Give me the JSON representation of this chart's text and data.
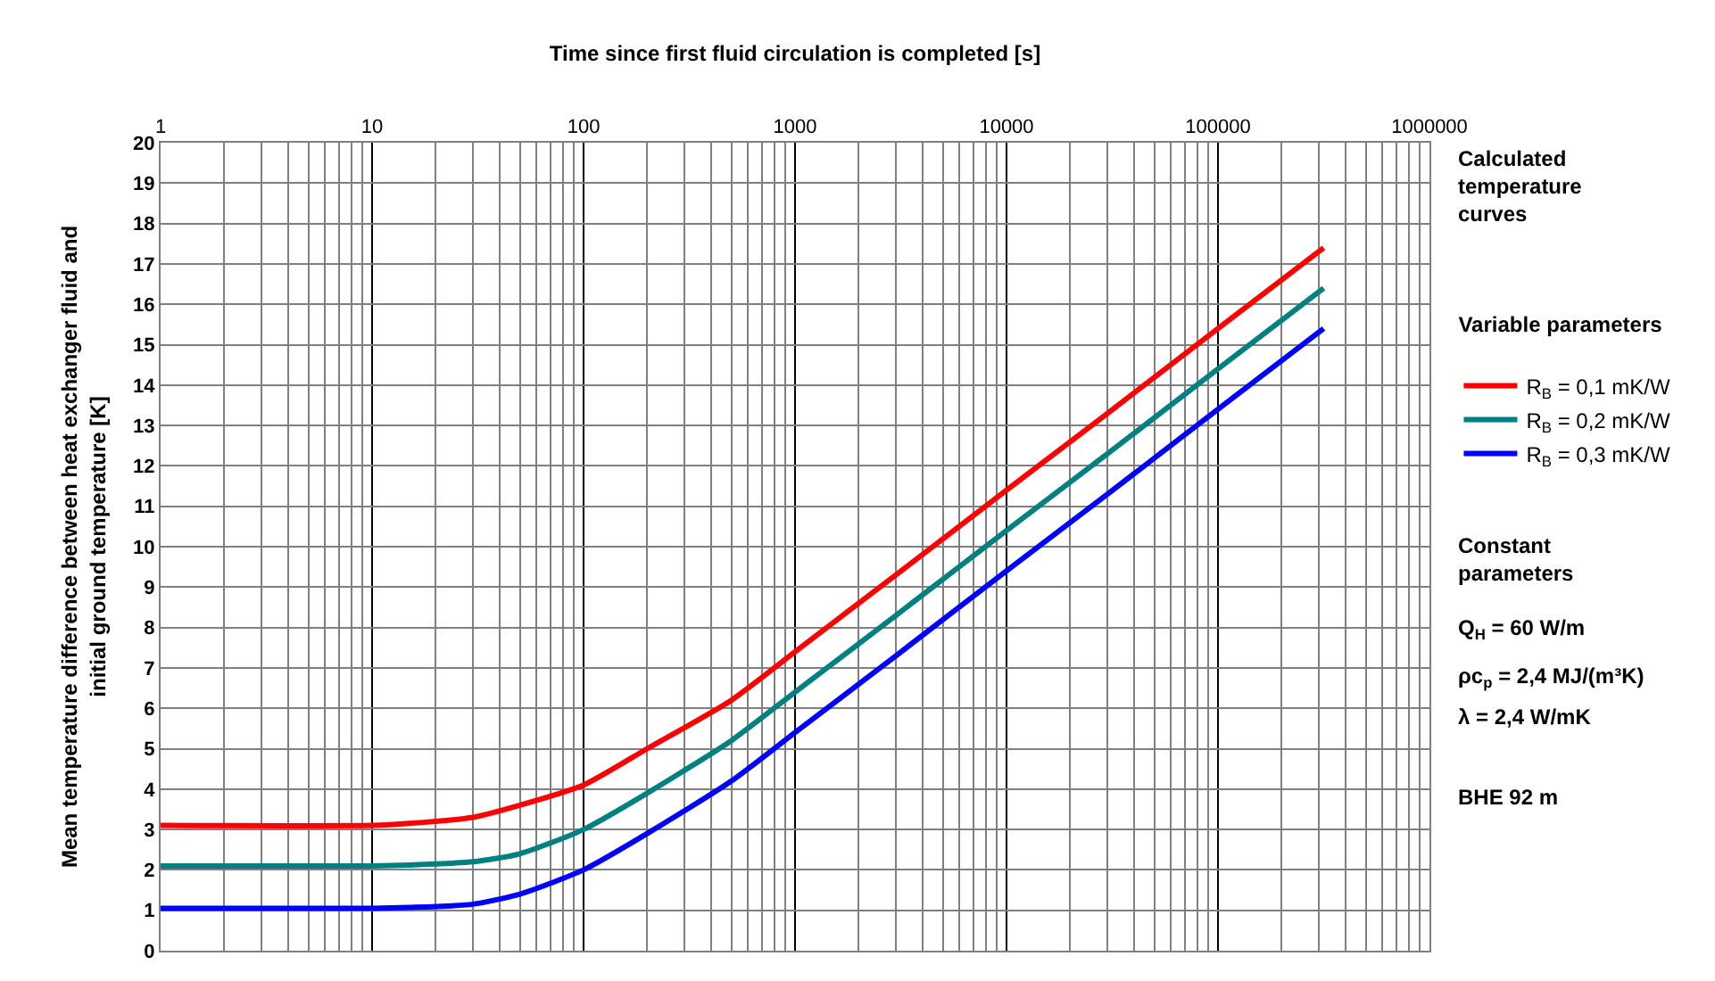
{
  "chart_data": {
    "type": "line",
    "xlabel": "Time since first fluid circulation is completed [s]",
    "ylabel": "Mean temperature difference between heat exchanger fluid and initial ground temperature [K]",
    "x": [
      1,
      10,
      15,
      30,
      50,
      100,
      200,
      500,
      1000,
      3000,
      10000,
      30000,
      100000,
      316000
    ],
    "series": [
      {
        "name": "R$_{B}$ = 0,1 mK/W",
        "color": "#ff0000",
        "values": [
          3.1,
          3.1,
          3.15,
          3.3,
          3.6,
          4.1,
          5.0,
          6.2,
          7.4,
          9.3,
          11.4,
          13.3,
          15.4,
          17.4
        ]
      },
      {
        "name": "R$_{B}$ = 0,2 mK/W",
        "color": "#008080",
        "values": [
          2.1,
          2.1,
          2.12,
          2.2,
          2.4,
          3.0,
          3.9,
          5.2,
          6.4,
          8.3,
          10.4,
          12.3,
          14.4,
          16.4
        ]
      },
      {
        "name": "R$_{B}$ = 0,3 mK/W",
        "color": "#0000ff",
        "values": [
          1.05,
          1.05,
          1.07,
          1.15,
          1.4,
          2.0,
          2.9,
          4.2,
          5.4,
          7.3,
          9.4,
          11.3,
          13.4,
          15.4
        ]
      }
    ],
    "log": "x",
    "xlim": [
      1,
      1000000
    ],
    "xticks": [
      1,
      10,
      100,
      1000,
      10000,
      100000,
      1000000
    ],
    "ylim": [
      0,
      20
    ],
    "yticks": [
      0,
      1,
      2,
      3,
      4,
      5,
      6,
      7,
      8,
      9,
      10,
      11,
      12,
      13,
      14,
      15,
      16,
      17,
      18,
      19,
      20
    ],
    "grid": true,
    "legend": "right",
    "marker": "none",
    "line_style": "solid",
    "legend_title": "Variable parameters",
    "annotations": [
      "Calculated temperature curves",
      "Constant parameters",
      "Q$_{H}$ = 60 W/m",
      "ρc$_{p}$ = 2,4 MJ/(m³K)",
      "λ = 2,4 W/mK",
      "BHE 92 m"
    ]
  }
}
